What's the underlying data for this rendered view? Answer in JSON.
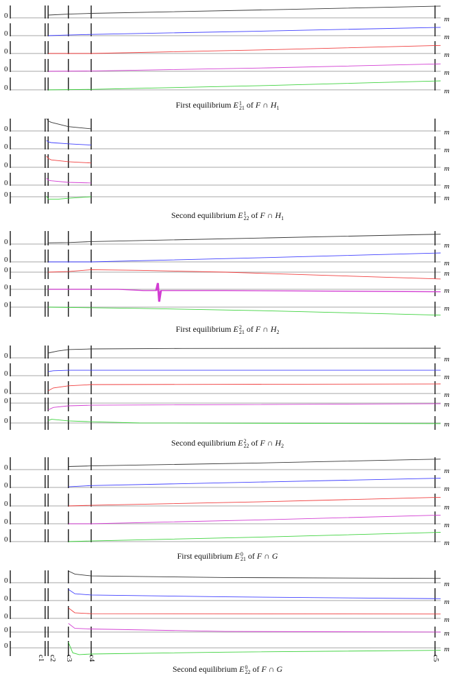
{
  "chart_data": {
    "type": "line",
    "title": "",
    "xlabel": "m",
    "xlim": [
      0,
      100
    ],
    "x_ticks": [
      {
        "label": "c1",
        "value": 8.1
      },
      {
        "label": "c2",
        "value": 8.8
      },
      {
        "label": "c3",
        "value": 13.5
      },
      {
        "label": "c4",
        "value": 18.8
      },
      {
        "label": "c5",
        "value": 98.7
      }
    ],
    "y_zero_label": "0",
    "series_colors": [
      "#333333",
      "#3c3cff",
      "#f03c3c",
      "#d23cd2",
      "#3cd23c"
    ],
    "panels": [
      {
        "caption": {
          "prefix": "First equilibrium",
          "symbol": "E",
          "sup": "1",
          "sub": "21",
          "of": "of",
          "set": "F ∩ H",
          "set_sub": "1"
        },
        "series": [
          {
            "points": [
              [
                8.8,
                0.22
              ],
              [
                13.5,
                0.3
              ],
              [
                18.8,
                0.36
              ],
              [
                60,
                0.65
              ],
              [
                100,
                0.95
              ]
            ]
          },
          {
            "points": [
              [
                8.8,
                0
              ],
              [
                13.5,
                0.05
              ],
              [
                18.8,
                0.1
              ],
              [
                60,
                0.38
              ],
              [
                100,
                0.67
              ]
            ]
          },
          {
            "points": [
              [
                8.8,
                0
              ],
              [
                18.8,
                0
              ],
              [
                60,
                0.3
              ],
              [
                100,
                0.65
              ]
            ]
          },
          {
            "points": [
              [
                8.8,
                0
              ],
              [
                18.8,
                0.02
              ],
              [
                60,
                0.28
              ],
              [
                100,
                0.6
              ]
            ]
          },
          {
            "points": [
              [
                8.8,
                0
              ],
              [
                18.8,
                0.04
              ],
              [
                60,
                0.35
              ],
              [
                100,
                0.72
              ]
            ]
          }
        ]
      },
      {
        "caption": {
          "prefix": "Second equilibrium",
          "symbol": "E",
          "sup": "1",
          "sub": "22",
          "of": "of",
          "set": "F ∩ H",
          "set_sub": "1"
        },
        "series": [
          {
            "points": [
              [
                8.4,
                1.0
              ],
              [
                8.9,
                0.8
              ],
              [
                9.5,
                0.7
              ],
              [
                13.5,
                0.35
              ],
              [
                18.8,
                0.17
              ]
            ]
          },
          {
            "points": [
              [
                8.4,
                0.67
              ],
              [
                8.9,
                0.55
              ],
              [
                9.5,
                0.5
              ],
              [
                13.5,
                0.4
              ],
              [
                18.8,
                0.3
              ]
            ]
          },
          {
            "points": [
              [
                8.4,
                0.9
              ],
              [
                8.9,
                0.7
              ],
              [
                9.5,
                0.6
              ],
              [
                13.5,
                0.45
              ],
              [
                18.8,
                0.35
              ]
            ]
          },
          {
            "points": [
              [
                8.4,
                0.55
              ],
              [
                8.9,
                0.4
              ],
              [
                9.5,
                0.35
              ],
              [
                13.5,
                0.22
              ],
              [
                18.8,
                0.17
              ]
            ]
          },
          {
            "points": [
              [
                8.4,
                0.05
              ],
              [
                8.9,
                -0.2
              ],
              [
                11,
                -0.2
              ],
              [
                13.5,
                -0.12
              ],
              [
                18.8,
                0
              ]
            ]
          }
        ]
      },
      {
        "caption": {
          "prefix": "First equilibrium",
          "symbol": "E",
          "sup": "2",
          "sub": "21",
          "of": "of",
          "set": "F ∩ H",
          "set_sub": "2"
        },
        "series": [
          {
            "points": [
              [
                8.8,
                0.1
              ],
              [
                13.5,
                0.12
              ],
              [
                18.8,
                0.2
              ],
              [
                60,
                0.5
              ],
              [
                100,
                0.8
              ]
            ]
          },
          {
            "points": [
              [
                8.8,
                0
              ],
              [
                18.8,
                0
              ],
              [
                60,
                0.35
              ],
              [
                100,
                0.72
              ]
            ]
          },
          {
            "points": [
              [
                8.8,
                0
              ],
              [
                13.5,
                0.05
              ],
              [
                18.8,
                0.2
              ],
              [
                30,
                0.15
              ],
              [
                50,
                0
              ],
              [
                100,
                -0.55
              ]
            ]
          },
          {
            "points": [
              [
                8.8,
                0
              ],
              [
                25,
                0
              ],
              [
                31,
                -0.1
              ],
              [
                33.9,
                -0.1
              ],
              [
                34.3,
                0.5
              ],
              [
                34.6,
                -1.0
              ],
              [
                35,
                -0.1
              ],
              [
                50,
                -0.1
              ],
              [
                100,
                -0.2
              ]
            ],
            "spike": true
          },
          {
            "points": [
              [
                8.8,
                0
              ],
              [
                30,
                -0.1
              ],
              [
                60,
                -0.3
              ],
              [
                100,
                -0.65
              ]
            ]
          }
        ]
      },
      {
        "caption": {
          "prefix": "Second equilibrium",
          "symbol": "E",
          "sup": "2",
          "sub": "22",
          "of": "of",
          "set": "F ∩ H",
          "set_sub": "2"
        },
        "series": [
          {
            "points": [
              [
                8.8,
                0.39
              ],
              [
                11,
                0.55
              ],
              [
                13.5,
                0.67
              ],
              [
                18.8,
                0.72
              ],
              [
                40,
                0.76
              ],
              [
                100,
                0.78
              ]
            ]
          },
          {
            "points": [
              [
                8.8,
                0.33
              ],
              [
                10,
                0.4
              ],
              [
                13.5,
                0.44
              ],
              [
                100,
                0.44
              ]
            ]
          },
          {
            "points": [
              [
                8.8,
                0.22
              ],
              [
                10,
                0.45
              ],
              [
                13.5,
                0.62
              ],
              [
                18.8,
                0.72
              ],
              [
                100,
                0.78
              ]
            ]
          },
          {
            "points": [
              [
                8.8,
                -0.55
              ],
              [
                10,
                -0.35
              ],
              [
                13.5,
                -0.22
              ],
              [
                18.8,
                -0.17
              ],
              [
                100,
                -0.05
              ]
            ]
          },
          {
            "points": [
              [
                8.8,
                0.2
              ],
              [
                9.6,
                0.3
              ],
              [
                13.5,
                0.17
              ],
              [
                18.8,
                0.1
              ],
              [
                30,
                0
              ],
              [
                100,
                -0.05
              ]
            ]
          }
        ]
      },
      {
        "caption": {
          "prefix": "First equilibrium",
          "symbol": "E",
          "sup": "0",
          "sub": "21",
          "of": "of",
          "set": "F ∩ G",
          "set_sub": ""
        },
        "series": [
          {
            "points": [
              [
                13.5,
                0.25
              ],
              [
                18.8,
                0.3
              ],
              [
                60,
                0.55
              ],
              [
                100,
                0.85
              ]
            ]
          },
          {
            "points": [
              [
                13.5,
                0.05
              ],
              [
                18.8,
                0.15
              ],
              [
                60,
                0.45
              ],
              [
                100,
                0.75
              ]
            ]
          },
          {
            "points": [
              [
                13.5,
                0
              ],
              [
                18.8,
                0.05
              ],
              [
                60,
                0.35
              ],
              [
                100,
                0.7
              ]
            ]
          },
          {
            "points": [
              [
                13.5,
                0
              ],
              [
                18.8,
                0
              ],
              [
                60,
                0.33
              ],
              [
                100,
                0.7
              ]
            ]
          },
          {
            "points": [
              [
                13.5,
                0
              ],
              [
                18.8,
                0.05
              ],
              [
                60,
                0.38
              ],
              [
                100,
                0.75
              ]
            ]
          }
        ]
      },
      {
        "caption": {
          "prefix": "Second equilibrium",
          "symbol": "E",
          "sup": "0",
          "sub": "22",
          "of": "of",
          "set": "F ∩ G",
          "set_sub": ""
        },
        "series": [
          {
            "points": [
              [
                13.5,
                0.95
              ],
              [
                15,
                0.7
              ],
              [
                18.8,
                0.55
              ],
              [
                50,
                0.42
              ],
              [
                100,
                0.35
              ]
            ]
          },
          {
            "points": [
              [
                13.5,
                0.9
              ],
              [
                15,
                0.55
              ],
              [
                18.8,
                0.45
              ],
              [
                50,
                0.3
              ],
              [
                100,
                0.15
              ]
            ]
          },
          {
            "points": [
              [
                13.5,
                0.85
              ],
              [
                15,
                0.45
              ],
              [
                18.8,
                0.38
              ],
              [
                100,
                0.35
              ]
            ]
          },
          {
            "points": [
              [
                13.5,
                0.7
              ],
              [
                15,
                0.3
              ],
              [
                18.8,
                0.25
              ],
              [
                50,
                0.05
              ],
              [
                100,
                0
              ]
            ]
          },
          {
            "points": [
              [
                13.5,
                0.45
              ],
              [
                14.5,
                -0.4
              ],
              [
                16,
                -0.55
              ],
              [
                18.8,
                -0.5
              ],
              [
                50,
                -0.35
              ],
              [
                100,
                -0.2
              ]
            ]
          }
        ]
      }
    ]
  }
}
